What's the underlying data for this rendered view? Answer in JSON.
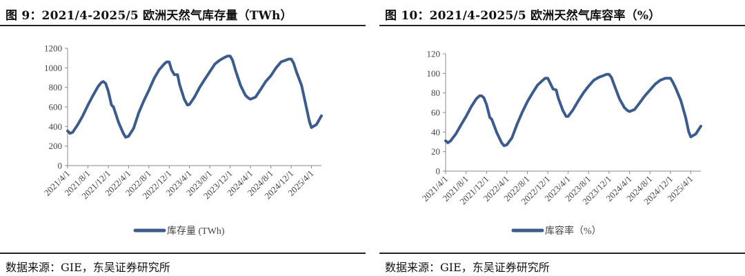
{
  "charts": [
    {
      "title": "图 9：2021/4-2025/5 欧洲天然气库存量（TWh）",
      "source": "数据来源：GIE，东吴证券研究所",
      "chart_data": {
        "type": "line",
        "ylim": [
          0,
          1200
        ],
        "yticks": [
          "0",
          "200",
          "400",
          "600",
          "800",
          "1000",
          "1200"
        ],
        "xticks": [
          "2021/4/1",
          "2021/8/1",
          "2021/12/1",
          "2022/4/1",
          "2022/8/1",
          "2022/12/1",
          "2023/4/1",
          "2023/8/1",
          "2023/12/1",
          "2024/4/1",
          "2024/8/1",
          "2024/12/1",
          "2025/4/1"
        ],
        "x_range": [
          "2021/4/1",
          "2025/5/31"
        ],
        "grid": false,
        "legend_position": "bottom",
        "color": "#3b5c8c",
        "series": [
          {
            "name": "库存量 (TWh)",
            "x": [
              "2021/4/1",
              "2021/4/15",
              "2021/5/1",
              "2021/6/1",
              "2021/7/1",
              "2021/8/1",
              "2021/9/1",
              "2021/10/1",
              "2021/10/20",
              "2021/11/1",
              "2021/11/15",
              "2021/12/1",
              "2021/12/20",
              "2022/1/1",
              "2022/2/1",
              "2022/3/1",
              "2022/3/15",
              "2022/4/1",
              "2022/5/1",
              "2022/6/1",
              "2022/7/1",
              "2022/8/1",
              "2022/9/1",
              "2022/10/1",
              "2022/11/1",
              "2022/11/15",
              "2022/12/1",
              "2022/12/15",
              "2023/1/1",
              "2023/1/20",
              "2023/2/1",
              "2023/3/1",
              "2023/3/20",
              "2023/4/1",
              "2023/5/1",
              "2023/6/1",
              "2023/7/1",
              "2023/8/1",
              "2023/9/1",
              "2023/10/1",
              "2023/11/1",
              "2023/11/15",
              "2023/12/1",
              "2023/12/15",
              "2024/1/1",
              "2024/2/1",
              "2024/3/1",
              "2024/3/20",
              "2024/4/1",
              "2024/5/1",
              "2024/6/1",
              "2024/7/1",
              "2024/8/1",
              "2024/9/1",
              "2024/10/1",
              "2024/11/1",
              "2024/11/15",
              "2024/12/1",
              "2024/12/15",
              "2025/1/1",
              "2025/2/1",
              "2025/3/1",
              "2025/3/20",
              "2025/4/1",
              "2025/5/1",
              "2025/5/31"
            ],
            "values": [
              355,
              330,
              340,
              420,
              510,
              620,
              720,
              810,
              850,
              860,
              840,
              760,
              620,
              600,
              440,
              330,
              290,
              300,
              380,
              540,
              660,
              770,
              890,
              980,
              1040,
              1060,
              1060,
              980,
              930,
              930,
              830,
              680,
              620,
              625,
              700,
              800,
              880,
              960,
              1040,
              1080,
              1110,
              1120,
              1120,
              1080,
              980,
              820,
              720,
              690,
              680,
              700,
              780,
              860,
              920,
              1000,
              1060,
              1080,
              1090,
              1090,
              1050,
              960,
              820,
              600,
              450,
              390,
              420,
              510
            ]
          }
        ]
      }
    },
    {
      "title": "图 10：2021/4-2025/5 欧洲天然气库容率（%）",
      "source": "数据来源：GIE，东吴证券研究所",
      "chart_data": {
        "type": "line",
        "ylim": [
          0,
          120
        ],
        "yticks": [
          "0",
          "20",
          "40",
          "60",
          "80",
          "100",
          "120"
        ],
        "xticks": [
          "2021/4/1",
          "2021/8/1",
          "2021/12/1",
          "2022/4/1",
          "2022/8/1",
          "2022/12/1",
          "2023/4/1",
          "2023/8/1",
          "2023/12/1",
          "2024/4/1",
          "2024/8/1",
          "2024/12/1",
          "2025/4/1"
        ],
        "x_range": [
          "2021/4/1",
          "2025/5/31"
        ],
        "grid": false,
        "legend_position": "bottom",
        "color": "#3b5c8c",
        "series": [
          {
            "name": "库容率（%）",
            "x": [
              "2021/4/1",
              "2021/4/15",
              "2021/5/1",
              "2021/6/1",
              "2021/7/1",
              "2021/8/1",
              "2021/9/1",
              "2021/10/1",
              "2021/10/20",
              "2021/11/1",
              "2021/11/15",
              "2021/12/1",
              "2021/12/20",
              "2022/1/1",
              "2022/2/1",
              "2022/3/1",
              "2022/3/15",
              "2022/4/1",
              "2022/5/1",
              "2022/6/1",
              "2022/7/1",
              "2022/8/1",
              "2022/9/1",
              "2022/10/1",
              "2022/11/1",
              "2022/11/15",
              "2022/12/1",
              "2022/12/15",
              "2023/1/1",
              "2023/1/20",
              "2023/2/1",
              "2023/3/1",
              "2023/3/20",
              "2023/4/1",
              "2023/5/1",
              "2023/6/1",
              "2023/7/1",
              "2023/8/1",
              "2023/9/1",
              "2023/10/1",
              "2023/11/1",
              "2023/11/15",
              "2023/12/1",
              "2023/12/15",
              "2024/1/1",
              "2024/2/1",
              "2024/3/1",
              "2024/3/20",
              "2024/4/1",
              "2024/5/1",
              "2024/6/1",
              "2024/7/1",
              "2024/8/1",
              "2024/9/1",
              "2024/10/1",
              "2024/11/1",
              "2024/11/15",
              "2024/12/1",
              "2024/12/15",
              "2025/1/1",
              "2025/2/1",
              "2025/3/1",
              "2025/3/20",
              "2025/4/1",
              "2025/5/1",
              "2025/5/31"
            ],
            "values": [
              31,
              29,
              31,
              38,
              47,
              56,
              66,
              74,
              77,
              77,
              75,
              68,
              55,
              53,
              39,
              29,
              26,
              27,
              34,
              48,
              60,
              71,
              80,
              88,
              93,
              95,
              95,
              90,
              84,
              83,
              75,
              62,
              56,
              56,
              63,
              72,
              80,
              87,
              93,
              96,
              98,
              99,
              99,
              96,
              88,
              74,
              65,
              62,
              61,
              63,
              70,
              77,
              83,
              89,
              93,
              95,
              95,
              95,
              91,
              85,
              72,
              55,
              40,
              35,
              38,
              46
            ]
          }
        ]
      }
    }
  ]
}
